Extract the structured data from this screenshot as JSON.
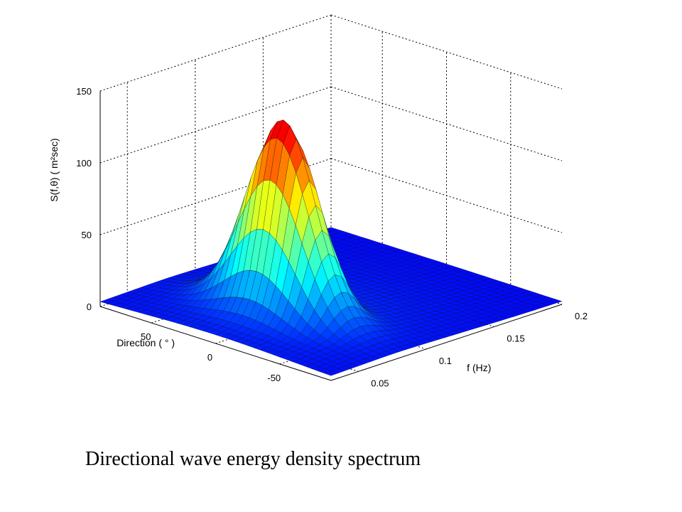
{
  "caption": "Directional wave energy density spectrum",
  "chart_data": {
    "type": "surface3d",
    "title": "",
    "xlabel": "f (Hz)",
    "ylabel": "Direction ( ° )",
    "zlabel": "S(f,θ) ( m²sec)",
    "xlim": [
      0.03,
      0.2
    ],
    "ylim": [
      -90,
      90
    ],
    "zlim": [
      0,
      150
    ],
    "xticks": [
      "0.05",
      "0.1",
      "0.15",
      "0.2"
    ],
    "yticks": [
      "-50",
      "0",
      "50"
    ],
    "zticks": [
      "0",
      "50",
      "100",
      "150"
    ],
    "grid": true,
    "colormap": "jet",
    "peak": {
      "f": 0.08,
      "direction": 0,
      "S": 138
    },
    "frequency_bandwidth_hz": 0.012,
    "directional_spread_deg": 25
  }
}
